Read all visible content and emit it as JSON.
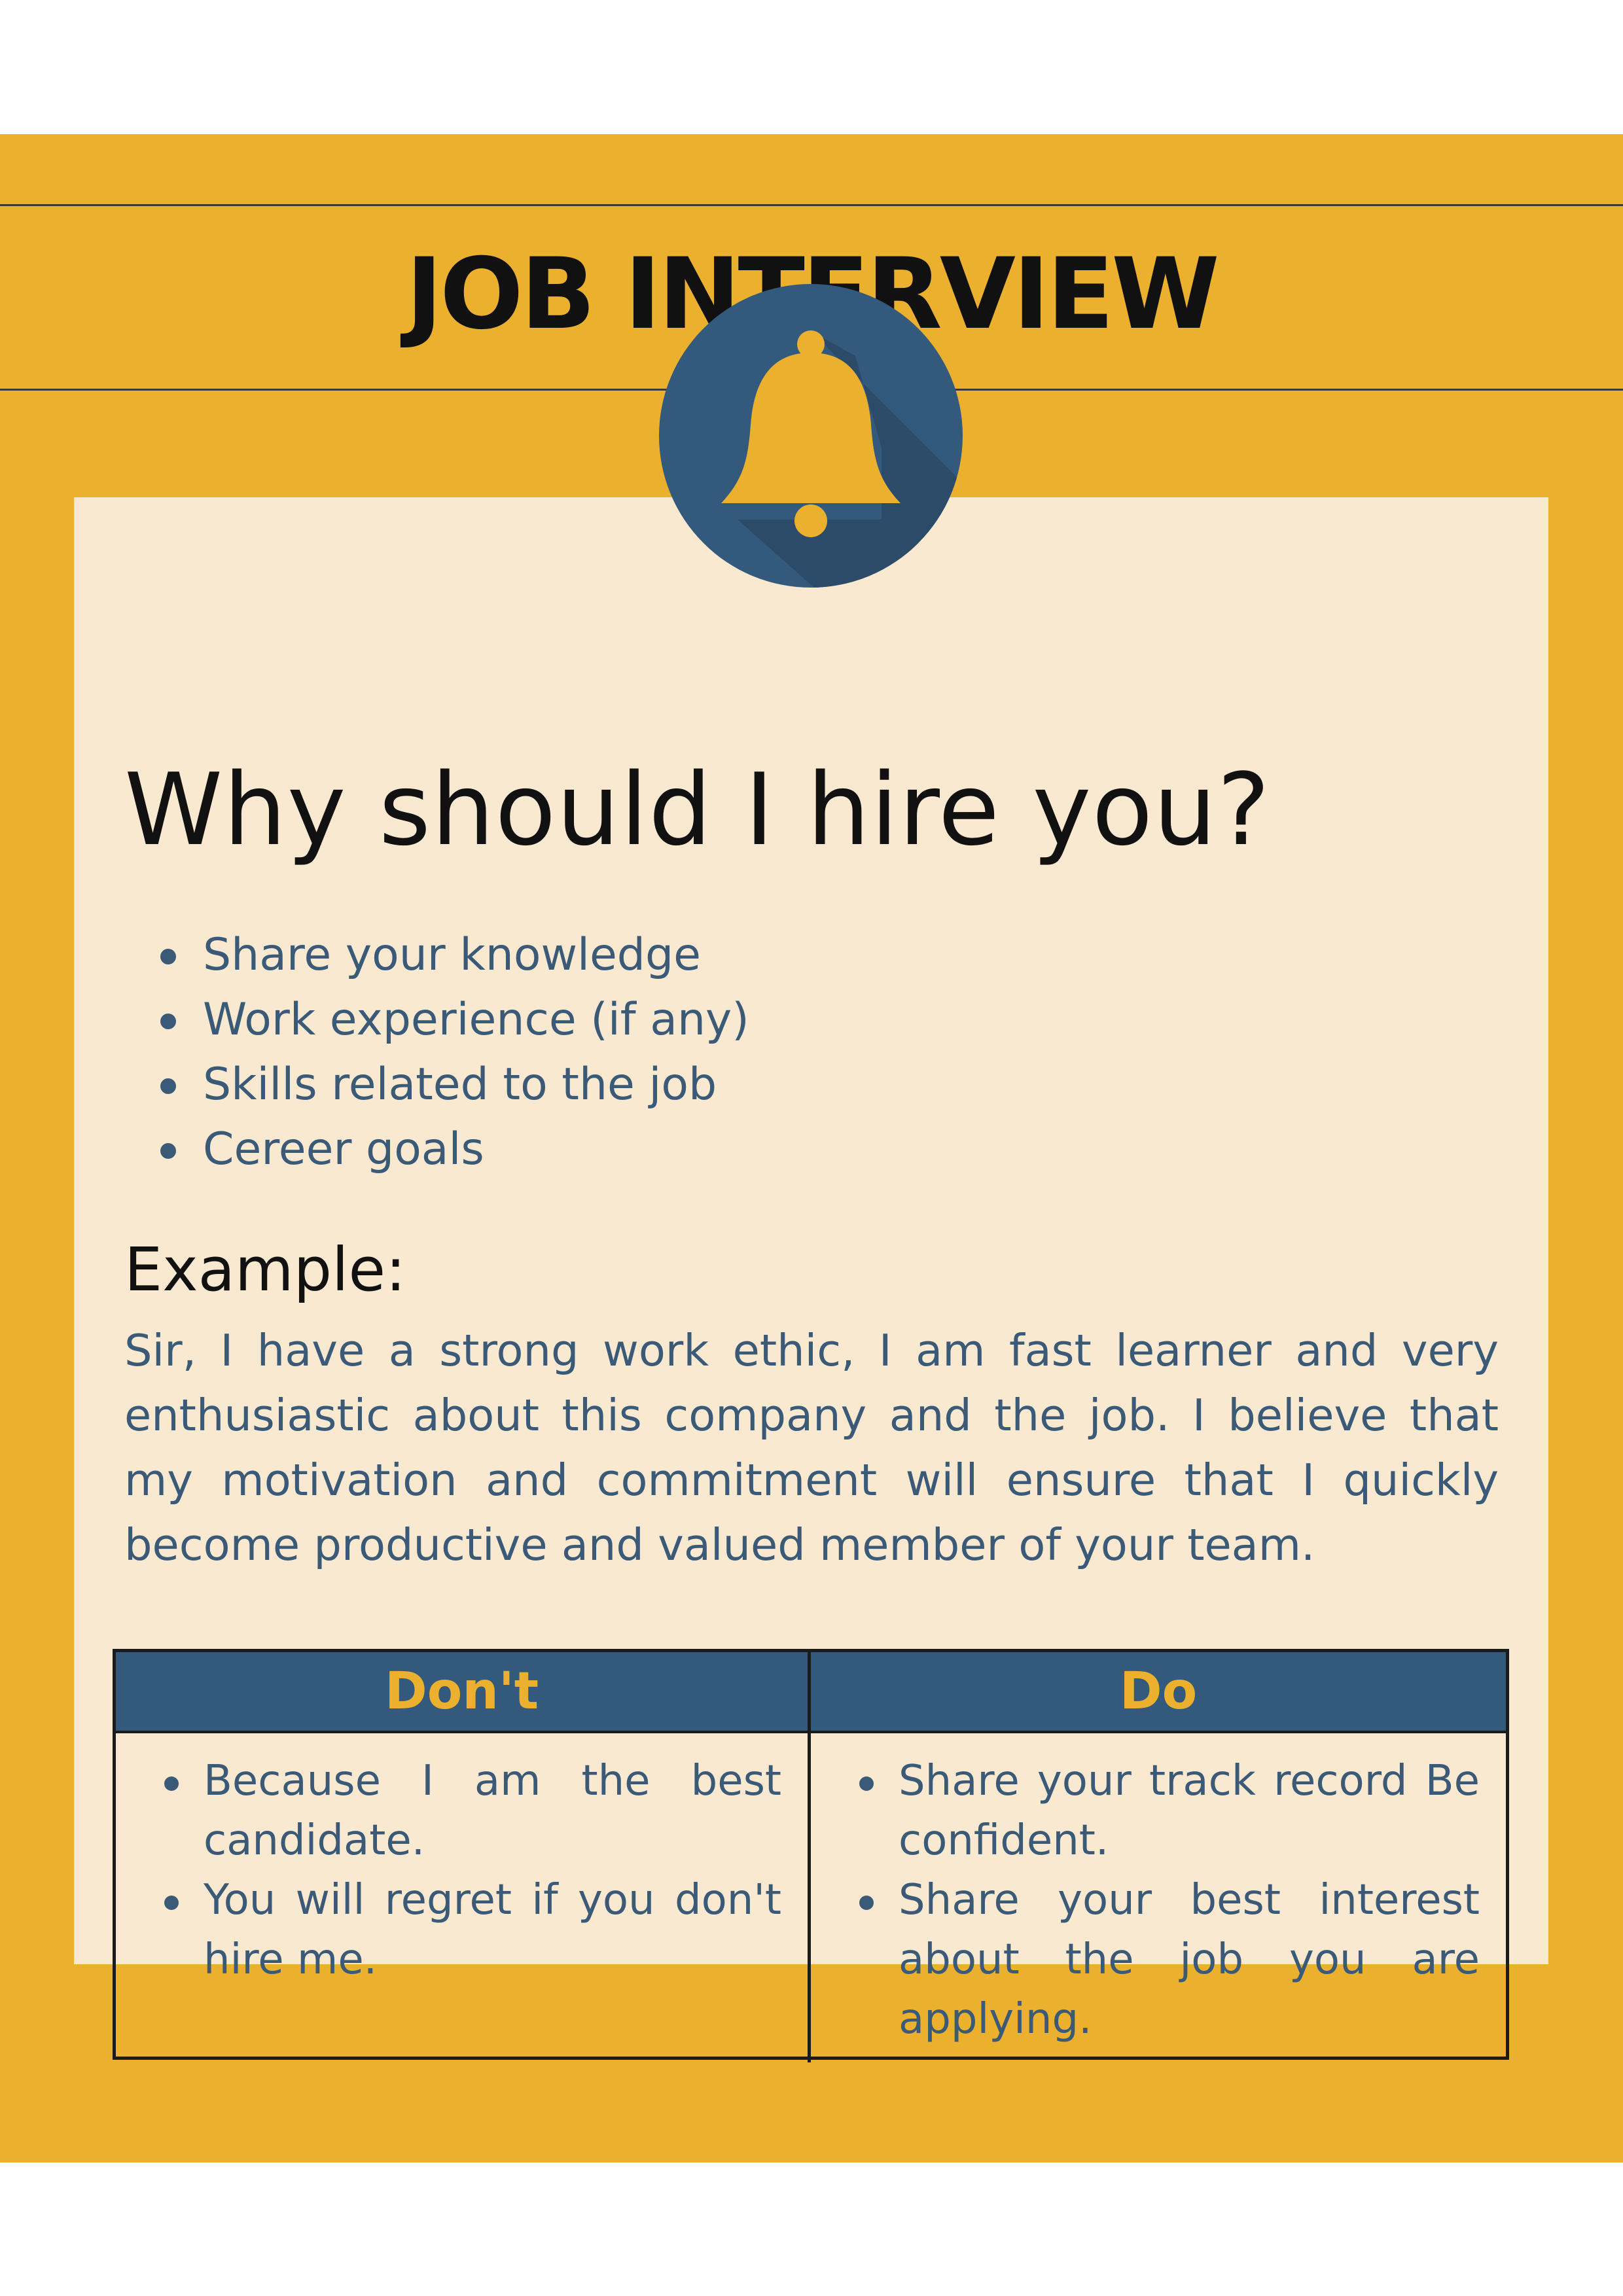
{
  "header": {
    "title": "JOB INTERVIEW"
  },
  "badge": {
    "icon": "bell-icon"
  },
  "main": {
    "question": "Why should I hire you?",
    "tips": [
      "Share your knowledge",
      "Work experience (if any)",
      "Skills related to the job",
      "Cereer goals"
    ],
    "example_label": "Example:",
    "example_text": "Sir, I have a strong work ethic, I am fast learner and very enthusiastic about this company and the job. I believe that my motivation and commitment will ensure that I quickly become productive and valued member of your team."
  },
  "table": {
    "dont_header": "Don't",
    "do_header": "Do",
    "dont_items": [
      "Because I am the best candidate.",
      "You will regret if you don't hire me."
    ],
    "do_items": [
      "Share your track record Be confident.",
      "Share your best interest about the job you are applying."
    ]
  },
  "colors": {
    "background": "#ebb02e",
    "card": "#f8e9d0",
    "accent_blue": "#335a7c",
    "text_blue": "#3a5a78",
    "bell": "#ebb02e"
  }
}
